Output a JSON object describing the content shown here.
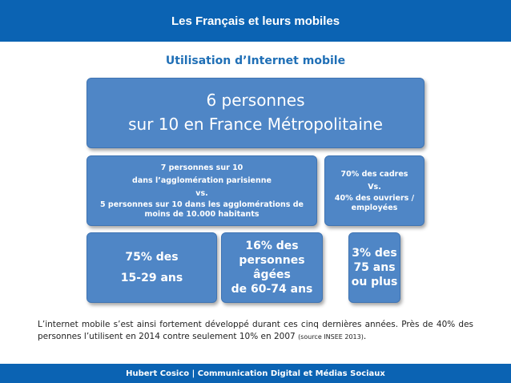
{
  "header": {
    "title": "Les Français et leurs mobiles"
  },
  "subtitle": "Utilisation d’Internet mobile",
  "big_box": {
    "line1": "6 personnes",
    "line2": "sur 10 en France Métropolitaine"
  },
  "mid_left": {
    "line1": "7 personnes sur 10",
    "line2": "dans l’agglomération parisienne",
    "line3": "vs.",
    "line4": "5 personnes sur 10 dans les agglomérations de moins de 10.000 habitants"
  },
  "mid_right": {
    "line1": "70% des cadres",
    "line2": "Vs.",
    "line3": "40% des ouvriers / employées"
  },
  "box_age1": {
    "line1": "75% des",
    "line2": "15-29 ans"
  },
  "box_age2": {
    "line1": "16% des",
    "line2": "personnes âgées",
    "line3": "de 60-74 ans"
  },
  "box_age3": {
    "line1": "3% des",
    "line2": "75 ans",
    "line3": "ou plus"
  },
  "paragraph": {
    "text": "L’internet mobile s’est ainsi fortement développé durant ces cinq dernières années. Près de 40% des personnes l’utilisent en 2014 contre seulement 10% en 2007",
    "source": "(source INSEE 2013)",
    "end": "."
  },
  "footer": {
    "text": "Hubert Cosico | Communication Digital et Médias Sociaux"
  }
}
